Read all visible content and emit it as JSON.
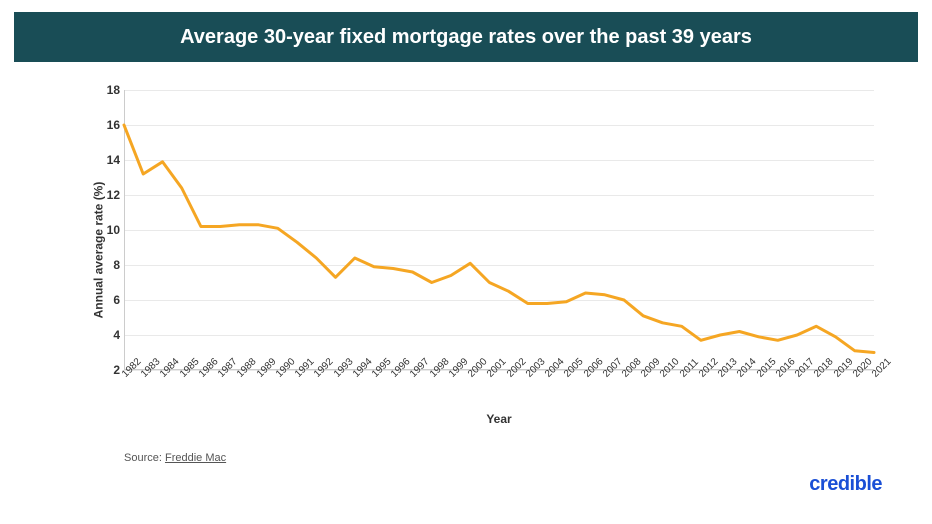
{
  "title": "Average 30-year fixed mortgage rates over the past 39 years",
  "title_fontsize": 20,
  "header_bg": "#194d56",
  "header_fg": "#ffffff",
  "source_prefix": "Source: ",
  "source_name": "Freddie Mac",
  "brand": "credible",
  "brand_color": "#1a4fd6",
  "chart": {
    "type": "line",
    "xlabel": "Year",
    "ylabel": "Annual average rate (%)",
    "label_fontsize": 12,
    "ylim": [
      2,
      18
    ],
    "ytick_step": 2,
    "yticks": [
      2,
      4,
      6,
      8,
      10,
      12,
      14,
      16,
      18
    ],
    "x_categories": [
      "1982",
      "1983",
      "1984",
      "1985",
      "1986",
      "1987",
      "1988",
      "1989",
      "1990",
      "1991",
      "1992",
      "1993",
      "1994",
      "1995",
      "1996",
      "1997",
      "1998",
      "1999",
      "2000",
      "2001",
      "2002",
      "2003",
      "2004",
      "2005",
      "2006",
      "2007",
      "2008",
      "2009",
      "2010",
      "2011",
      "2012",
      "2013",
      "2014",
      "2015",
      "2016",
      "2017",
      "2018",
      "2019",
      "2020",
      "2021"
    ],
    "values": [
      16.0,
      13.2,
      13.9,
      12.4,
      10.2,
      10.2,
      10.3,
      10.3,
      10.1,
      9.3,
      8.4,
      7.3,
      8.4,
      7.9,
      7.8,
      7.6,
      7.0,
      7.4,
      8.1,
      7.0,
      6.5,
      5.8,
      5.8,
      5.9,
      6.4,
      6.3,
      6.0,
      5.1,
      4.7,
      4.5,
      3.7,
      4.0,
      4.2,
      3.9,
      3.7,
      4.0,
      4.5,
      3.9,
      3.1,
      3.0
    ],
    "line_color": "#f5a623",
    "line_width": 3,
    "background_color": "#ffffff",
    "grid_color": "#e9e9e9",
    "axis_color": "#cccccc",
    "tick_font_color": "#333333",
    "x_tick_rotation_deg": -45
  }
}
